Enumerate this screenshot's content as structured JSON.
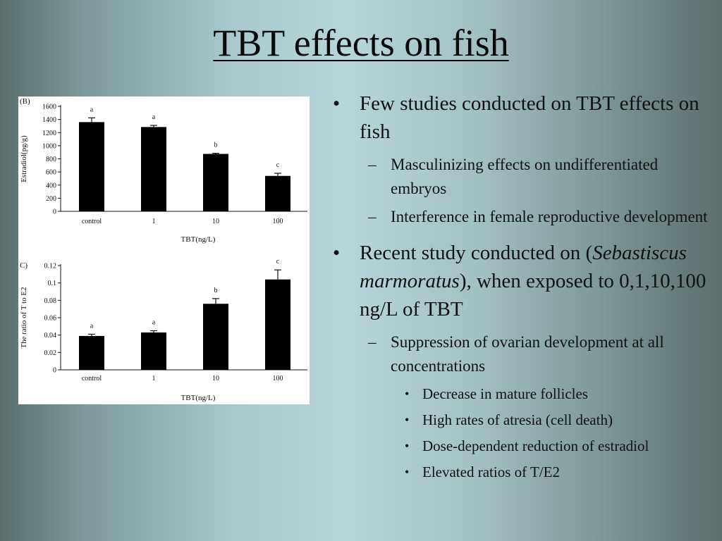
{
  "slide": {
    "title": "TBT effects on fish"
  },
  "bullets": [
    {
      "text": "Few studies conducted on TBT effects on fish",
      "sub": [
        "Masculinizing effects on undifferentiated embryos",
        "Interference in female reproductive development"
      ]
    },
    {
      "text_before": "Recent study conducted on (",
      "text_italic": "Sebastiscus marmoratus",
      "text_after": "), when exposed to 0,1,10,100 ng/L of TBT",
      "sub": [
        {
          "text": "Suppression of ovarian development at all concentrations",
          "sub": [
            "Decrease in mature follicles",
            "High rates of atresia (cell death)",
            "Dose-dependent reduction of estradiol",
            "Elevated ratios of T/E2"
          ]
        }
      ]
    }
  ],
  "chart_data": [
    {
      "type": "bar",
      "panel_label": "(B)",
      "categories": [
        "control",
        "1",
        "10",
        "100"
      ],
      "values": [
        1360,
        1285,
        875,
        540
      ],
      "errors": [
        65,
        25,
        10,
        40
      ],
      "significance": [
        "a",
        "a",
        "b",
        "c"
      ],
      "ylabel": "Estradiol(pg/g)",
      "xlabel": "TBT(ng/L)",
      "ylim": [
        0,
        1600
      ],
      "yticks": [
        "0",
        "200",
        "400",
        "600",
        "800",
        "1000",
        "1200",
        "1400",
        "1600"
      ],
      "bar_color": "#000000"
    },
    {
      "type": "bar",
      "panel_label": "C)",
      "categories": [
        "control",
        "1",
        "10",
        "100"
      ],
      "values": [
        0.039,
        0.043,
        0.076,
        0.104
      ],
      "errors": [
        0.002,
        0.002,
        0.006,
        0.011
      ],
      "significance": [
        "a",
        "a",
        "b",
        "c"
      ],
      "ylabel": "The ratio of T to E2",
      "xlabel": "TBT(ng/L)",
      "ylim": [
        0,
        0.12
      ],
      "yticks": [
        "0",
        "0.02",
        "0.04",
        "0.06",
        "0.08",
        "0.1",
        "0.12"
      ],
      "bar_color": "#000000"
    }
  ]
}
